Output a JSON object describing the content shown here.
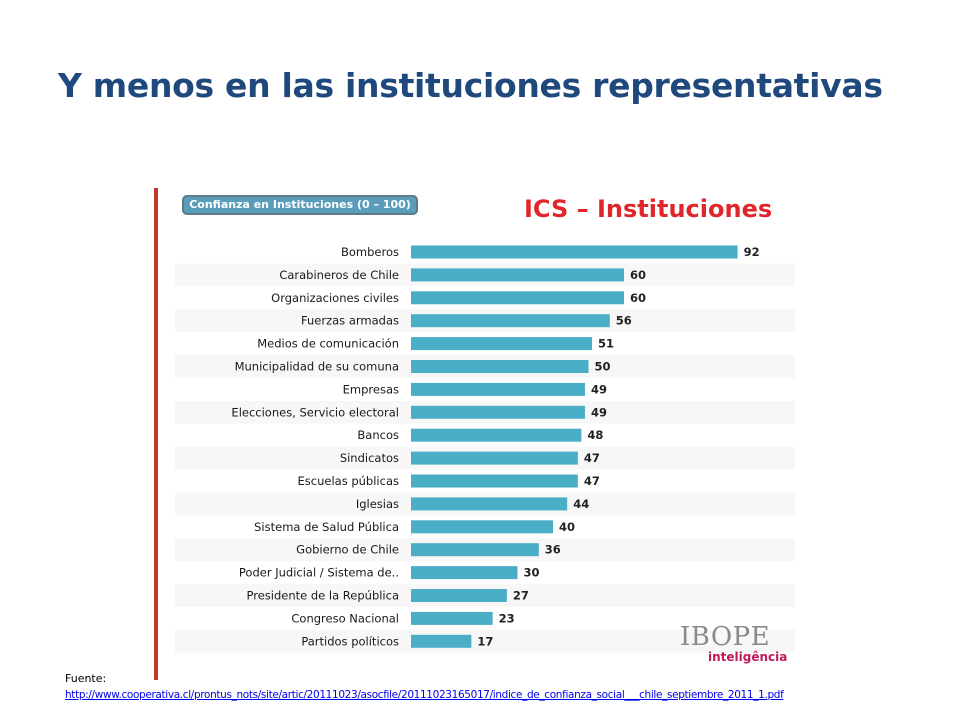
{
  "slide": {
    "title": "Y menos en las instituciones representativas"
  },
  "chart_data": {
    "type": "bar",
    "orientation": "horizontal",
    "badge": "Confianza en Instituciones (0 – 100)",
    "title": "ICS – Instituciones",
    "categories": [
      "Bomberos",
      "Carabineros de Chile",
      "Organizaciones civiles",
      "Fuerzas armadas",
      "Medios de comunicación",
      "Municipalidad de su comuna",
      "Empresas",
      "Elecciones, Servicio electoral",
      "Bancos",
      "Sindicatos",
      "Escuelas públicas",
      "Iglesias",
      "Sistema de Salud Pública",
      "Gobierno de Chile",
      "Poder Judicial / Sistema de..",
      "Presidente de la República",
      "Congreso Nacional",
      "Partidos políticos"
    ],
    "values": [
      92,
      60,
      60,
      56,
      51,
      50,
      49,
      49,
      48,
      47,
      47,
      44,
      40,
      36,
      30,
      27,
      23,
      17
    ],
    "xlim": [
      0,
      100
    ],
    "bar_color": "#4aaec6",
    "grid": false,
    "legend": "none"
  },
  "logo": {
    "main": "IBOPE",
    "sub": "inteligência"
  },
  "source": {
    "label": "Fuente:",
    "url": "http://www.cooperativa.cl/prontus_nots/site/artic/20111023/asocfile/20111023165017/indice_de_confianza_social___chile_septiembre_2011_1.pdf"
  }
}
